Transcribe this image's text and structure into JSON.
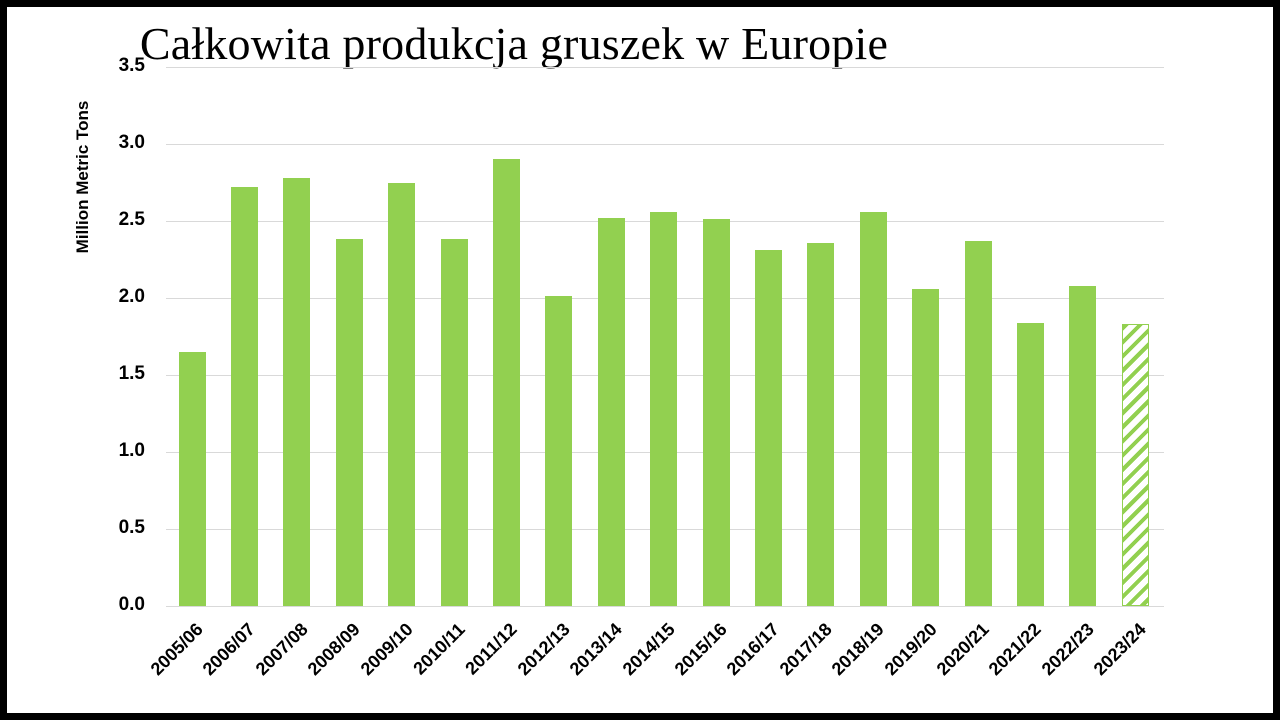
{
  "chart_data": {
    "type": "bar",
    "title": "Całkowita produkcja gruszek w Europie",
    "xlabel": "",
    "ylabel": "Million Metric Tons",
    "ylim": [
      0,
      3.5
    ],
    "yticks": [
      "0.0",
      "0.5",
      "1.0",
      "1.5",
      "2.0",
      "2.5",
      "3.0",
      "3.5"
    ],
    "grid": true,
    "legend": null,
    "categories": [
      "2005/06",
      "2006/07",
      "2007/08",
      "2008/09",
      "2009/10",
      "2010/11",
      "2011/12",
      "2012/13",
      "2013/14",
      "2014/15",
      "2015/16",
      "2016/17",
      "2017/18",
      "2018/19",
      "2019/20",
      "2020/21",
      "2021/22",
      "2022/23",
      "2023/24"
    ],
    "values": [
      1.65,
      2.72,
      2.78,
      2.38,
      2.75,
      2.38,
      2.9,
      2.01,
      2.52,
      2.56,
      2.51,
      2.31,
      2.36,
      2.56,
      2.06,
      2.37,
      1.84,
      2.08,
      1.83
    ],
    "annotations": [
      "2023/24 bar is hatched (forecast)"
    ],
    "bar_color": "#92d050",
    "hatched_categories": [
      "2023/24"
    ]
  }
}
